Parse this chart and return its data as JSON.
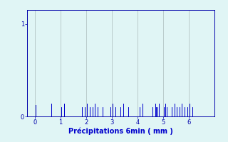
{
  "title": "",
  "xlabel": "Précipitations 6min ( mm )",
  "ylabel": "",
  "bg_color": "#e0f5f5",
  "bar_color": "#0000cc",
  "bar_width": 0.025,
  "xlim": [
    -0.3,
    7.0
  ],
  "ylim": [
    0,
    1.15
  ],
  "yticks": [
    0,
    1
  ],
  "xticks": [
    0,
    1,
    2,
    3,
    4,
    5,
    6
  ],
  "grid_color": "#aabbbb",
  "bar_positions": [
    0.03,
    0.55,
    0.65,
    1.05,
    1.15,
    1.85,
    1.95,
    2.05,
    2.15,
    2.25,
    2.35,
    2.45,
    2.65,
    2.75,
    2.95,
    3.05,
    3.15,
    3.35,
    3.45,
    3.65,
    3.75,
    4.1,
    4.2,
    4.6,
    4.7,
    4.75,
    4.8,
    4.85,
    5.05,
    5.1,
    5.15,
    5.35,
    5.45,
    5.55,
    5.65,
    5.75,
    5.85,
    5.95,
    6.05,
    6.15
  ],
  "bar_heights": [
    0.12,
    0.1,
    0.14,
    0.1,
    0.14,
    0.1,
    0.1,
    0.14,
    0.1,
    0.1,
    0.14,
    0.1,
    0.1,
    0.14,
    0.1,
    0.14,
    0.1,
    0.1,
    0.14,
    0.1,
    0.14,
    0.1,
    0.14,
    0.1,
    0.14,
    0.1,
    0.1,
    0.14,
    0.1,
    0.14,
    0.1,
    0.1,
    0.14,
    0.1,
    0.1,
    0.14,
    0.1,
    0.1,
    0.14,
    0.1
  ],
  "font_color": "#0000cc",
  "font_size": 7,
  "tick_font_size": 6,
  "axis_color": "#0000aa",
  "figsize": [
    3.2,
    2.0
  ],
  "dpi": 100
}
